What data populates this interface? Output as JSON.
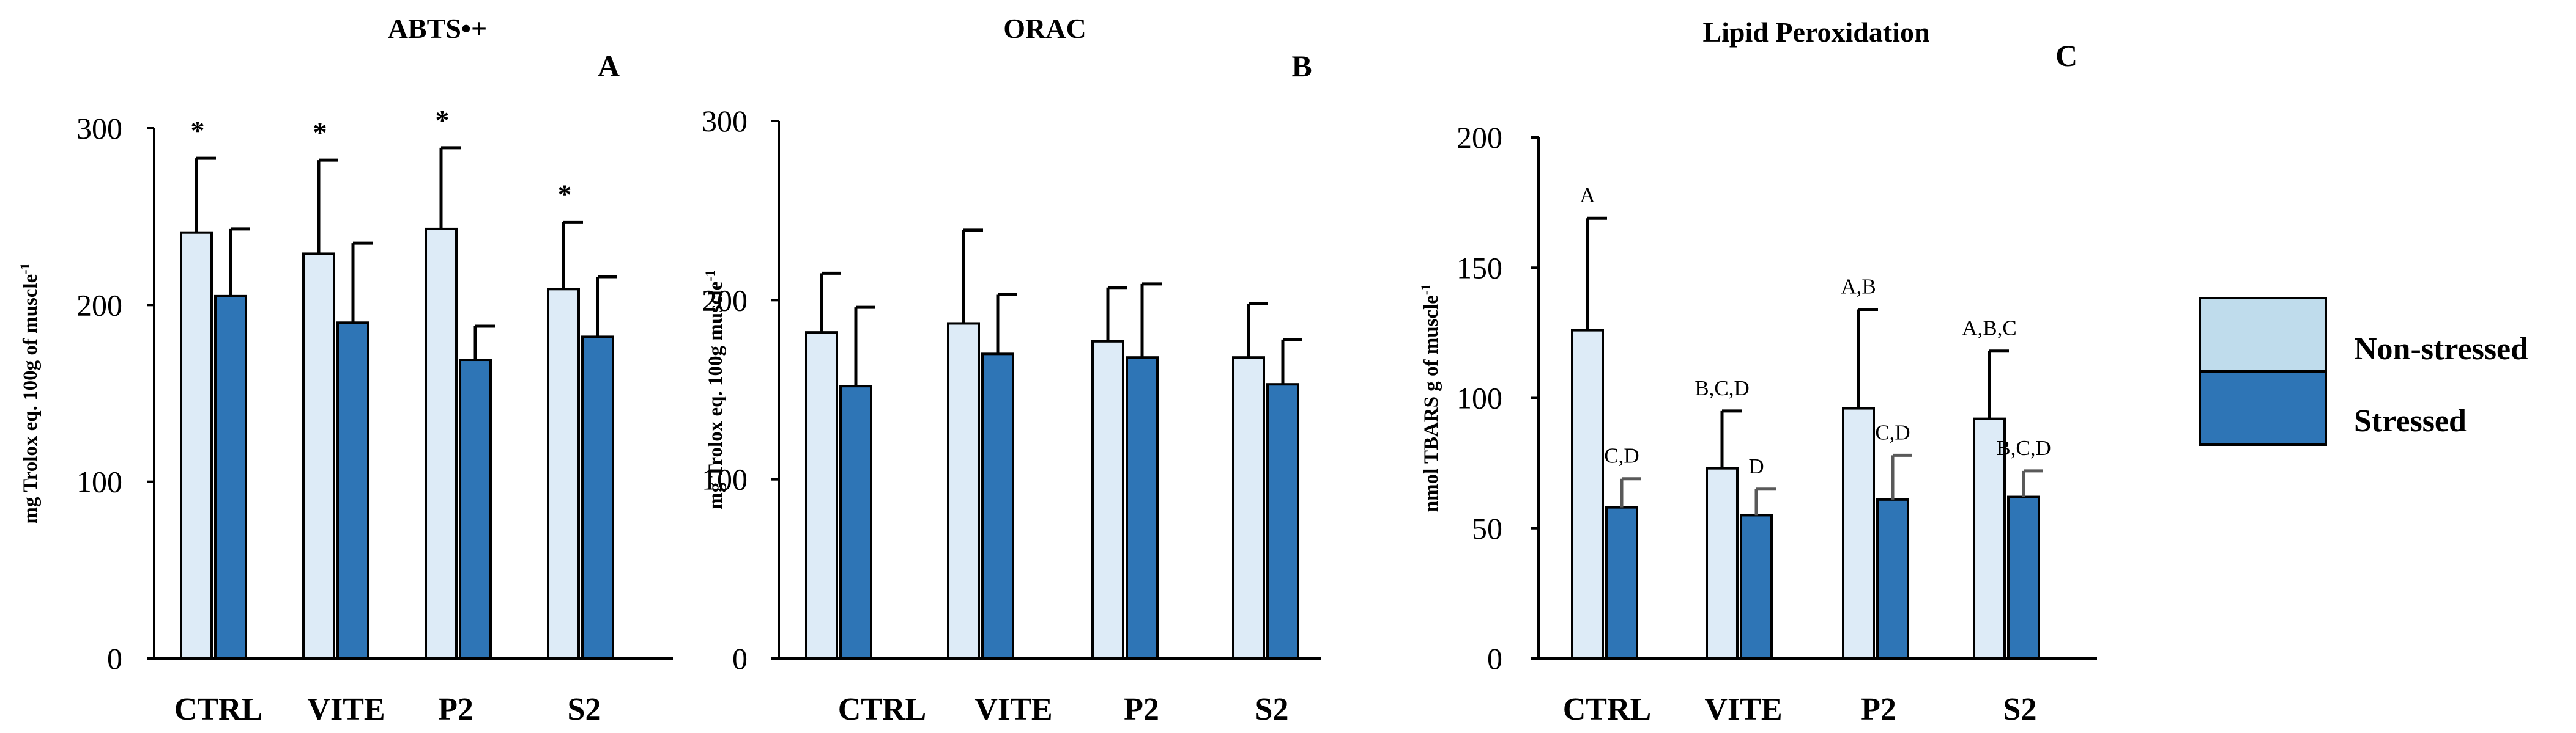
{
  "colors": {
    "non_stressed": "#ddebf7",
    "stressed": "#2e75b6",
    "legend_non_stressed": "#bfdcec",
    "legend_stressed": "#2e75b6",
    "axis": "#000000"
  },
  "legend": {
    "items": [
      {
        "label": "Non-stressed"
      },
      {
        "label": "Stressed"
      }
    ]
  },
  "chart_data": [
    {
      "type": "bar",
      "title": "ABTS•+",
      "panel_label": "A",
      "ylabel": "mg Trolox eq. 100g of muscle",
      "ylabel_sup": "-1",
      "ylim": [
        0,
        300
      ],
      "yticks": [
        "0",
        "100",
        "200",
        "300"
      ],
      "categories": [
        "CTRL",
        "VITE",
        "P2",
        "S2"
      ],
      "series": [
        {
          "name": "Non-stressed",
          "values": [
            241,
            229,
            243,
            209
          ],
          "errors": [
            42,
            53,
            46,
            38
          ]
        },
        {
          "name": "Stressed",
          "values": [
            205,
            190,
            169,
            182
          ],
          "errors": [
            38,
            45,
            19,
            34
          ]
        }
      ],
      "annotations": [
        {
          "category": "CTRL",
          "series": "Non-stressed",
          "text": "*"
        },
        {
          "category": "VITE",
          "series": "Non-stressed",
          "text": "*"
        },
        {
          "category": "P2",
          "series": "Non-stressed",
          "text": "*"
        },
        {
          "category": "S2",
          "series": "Non-stressed",
          "text": "*"
        }
      ]
    },
    {
      "type": "bar",
      "title": "ORAC",
      "panel_label": "B",
      "ylabel": "mg Trolox eq. 100g muscle",
      "ylabel_sup": "-1",
      "ylim": [
        0,
        300
      ],
      "yticks": [
        "0",
        "100",
        "200",
        "300"
      ],
      "categories": [
        "CTRL",
        "VITE",
        "P2",
        "S2"
      ],
      "series": [
        {
          "name": "Non-stressed",
          "values": [
            182,
            187,
            177,
            168
          ],
          "errors": [
            33,
            52,
            30,
            30
          ]
        },
        {
          "name": "Stressed",
          "values": [
            152,
            170,
            168,
            153
          ],
          "errors": [
            44,
            33,
            41,
            25
          ]
        }
      ],
      "annotations": []
    },
    {
      "type": "bar",
      "title": "Lipid Peroxidation",
      "panel_label": "C",
      "ylabel": "nmol TBARS g of muscle",
      "ylabel_sup": "-1",
      "ylim": [
        0,
        200
      ],
      "yticks": [
        "0",
        "50",
        "100",
        "150",
        "200"
      ],
      "categories": [
        "CTRL",
        "VITE",
        "P2",
        "S2"
      ],
      "series": [
        {
          "name": "Non-stressed",
          "values": [
            126,
            73,
            96,
            92
          ],
          "errors": [
            43,
            22,
            38,
            26
          ]
        },
        {
          "name": "Stressed",
          "values": [
            58,
            55,
            61,
            62
          ],
          "errors": [
            11,
            10,
            17,
            10
          ]
        }
      ],
      "annotations": [
        {
          "category": "CTRL",
          "series": "Non-stressed",
          "text": "A"
        },
        {
          "category": "CTRL",
          "series": "Stressed",
          "text": "C,D"
        },
        {
          "category": "VITE",
          "series": "Non-stressed",
          "text": "B,C,D"
        },
        {
          "category": "VITE",
          "series": "Stressed",
          "text": "D"
        },
        {
          "category": "P2",
          "series": "Non-stressed",
          "text": "A,B"
        },
        {
          "category": "P2",
          "series": "Stressed",
          "text": "C,D"
        },
        {
          "category": "S2",
          "series": "Non-stressed",
          "text": "A,B,C"
        },
        {
          "category": "S2",
          "series": "Stressed",
          "text": "B,C,D"
        }
      ]
    }
  ]
}
